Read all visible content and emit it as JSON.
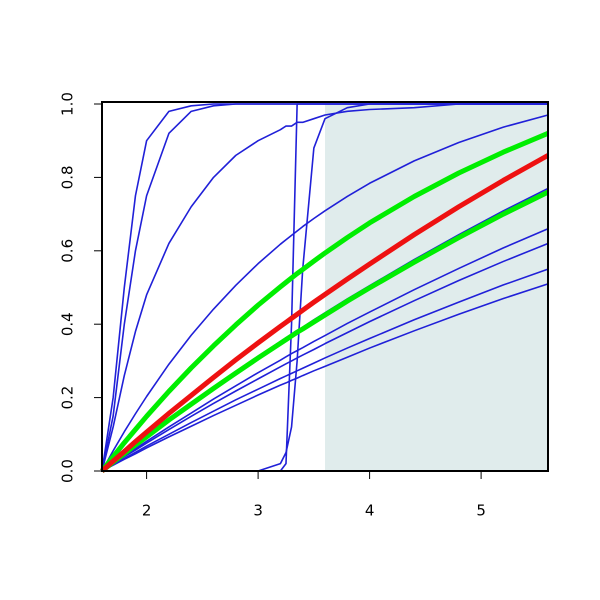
{
  "chart_data": {
    "type": "line",
    "x": [
      1.6,
      1.7,
      1.8,
      1.9,
      2.0,
      2.2,
      2.4,
      2.6,
      2.8,
      3.0,
      3.2,
      3.25,
      3.3,
      3.35,
      3.4,
      3.5,
      3.6,
      3.8,
      4.0,
      4.4,
      4.8,
      5.2,
      5.6
    ],
    "xlim": [
      1.6,
      5.6
    ],
    "xticks": [
      2,
      3,
      4,
      5
    ],
    "ylim": [
      0,
      1
    ],
    "yticks": [
      {
        "value": 0,
        "label": "0.0"
      },
      {
        "value": 0.2,
        "label": "0.2"
      },
      {
        "value": 0.4,
        "label": "0.4"
      },
      {
        "value": 0.6,
        "label": "0.6"
      },
      {
        "value": 0.8,
        "label": "0.8"
      },
      {
        "value": 1,
        "label": "1.0"
      }
    ],
    "shaded_region": {
      "xlim": [
        3.6,
        5.6
      ],
      "ylim": [
        0,
        1
      ],
      "color": "#e0ecec"
    },
    "series": [
      {
        "color": "#2020d8",
        "line_width": 1.6,
        "values": [
          0,
          0.2,
          0.5,
          0.75,
          0.9,
          0.98,
          0.995,
          1,
          1,
          1,
          1,
          1,
          1,
          1,
          1,
          1,
          1,
          1,
          1,
          1,
          1,
          1,
          1
        ]
      },
      {
        "color": "#2020d8",
        "line_width": 1.6,
        "values": [
          0,
          0.15,
          0.4,
          0.6,
          0.75,
          0.92,
          0.98,
          0.995,
          1,
          1,
          1,
          1,
          1,
          1,
          1,
          1,
          1,
          1,
          1,
          1,
          1,
          1,
          1
        ]
      },
      {
        "color": "#2020d8",
        "line_width": 1.6,
        "values": [
          0,
          0.12,
          0.26,
          0.38,
          0.48,
          0.62,
          0.72,
          0.8,
          0.86,
          0.9,
          0.93,
          0.94,
          0.94,
          0.95,
          0.95,
          0.96,
          0.97,
          0.98,
          0.985,
          0.99,
          1,
          1,
          1
        ]
      },
      {
        "color": "#2020d8",
        "line_width": 1.6,
        "values": [
          0,
          0,
          0,
          0,
          0,
          0,
          0,
          0,
          0,
          0,
          0,
          0.02,
          0.4,
          1,
          1,
          1,
          1,
          1,
          1,
          1,
          1,
          1,
          1
        ]
      },
      {
        "color": "#2020d8",
        "line_width": 1.6,
        "values": [
          0,
          0,
          0,
          0,
          0,
          0,
          0,
          0,
          0,
          0,
          0.02,
          0.05,
          0.12,
          0.3,
          0.55,
          0.88,
          0.96,
          0.99,
          1,
          1,
          1,
          1,
          1
        ]
      },
      {
        "color": "#2020d8",
        "line_width": 1.6,
        "values": [
          0,
          0.055,
          0.107,
          0.156,
          0.203,
          0.291,
          0.37,
          0.441,
          0.506,
          0.565,
          0.618,
          0.63,
          0.642,
          0.654,
          0.666,
          0.688,
          0.709,
          0.748,
          0.784,
          0.845,
          0.895,
          0.937,
          0.97
        ]
      },
      {
        "color": "#2020d8",
        "line_width": 1.6,
        "values": [
          0,
          0.024,
          0.048,
          0.071,
          0.095,
          0.14,
          0.185,
          0.228,
          0.271,
          0.312,
          0.353,
          0.363,
          0.373,
          0.383,
          0.392,
          0.412,
          0.431,
          0.469,
          0.505,
          0.576,
          0.644,
          0.709,
          0.77
        ]
      },
      {
        "color": "#2020d8",
        "line_width": 1.6,
        "values": [
          0,
          0.021,
          0.041,
          0.061,
          0.081,
          0.12,
          0.158,
          0.196,
          0.232,
          0.268,
          0.302,
          0.311,
          0.32,
          0.328,
          0.336,
          0.353,
          0.369,
          0.402,
          0.433,
          0.494,
          0.552,
          0.608,
          0.66
        ]
      },
      {
        "color": "#2020d8",
        "line_width": 1.6,
        "values": [
          0,
          0.019,
          0.039,
          0.057,
          0.076,
          0.113,
          0.149,
          0.184,
          0.218,
          0.251,
          0.284,
          0.292,
          0.3,
          0.308,
          0.316,
          0.331,
          0.347,
          0.377,
          0.407,
          0.464,
          0.519,
          0.571,
          0.62
        ]
      },
      {
        "color": "#2020d8",
        "line_width": 1.6,
        "values": [
          0,
          0.017,
          0.034,
          0.051,
          0.068,
          0.1,
          0.132,
          0.163,
          0.194,
          0.223,
          0.252,
          0.259,
          0.266,
          0.273,
          0.28,
          0.294,
          0.308,
          0.335,
          0.361,
          0.412,
          0.46,
          0.507,
          0.55
        ]
      },
      {
        "color": "#2020d8",
        "line_width": 1.6,
        "values": [
          0,
          0.016,
          0.032,
          0.047,
          0.063,
          0.093,
          0.122,
          0.151,
          0.179,
          0.207,
          0.234,
          0.24,
          0.247,
          0.253,
          0.26,
          0.273,
          0.285,
          0.31,
          0.335,
          0.382,
          0.427,
          0.47,
          0.51
        ]
      },
      {
        "color": "#00ee00",
        "line_width": 5,
        "values": [
          0,
          0.024,
          0.047,
          0.071,
          0.093,
          0.139,
          0.182,
          0.225,
          0.267,
          0.308,
          0.348,
          0.358,
          0.368,
          0.378,
          0.387,
          0.406,
          0.425,
          0.463,
          0.499,
          0.569,
          0.636,
          0.7,
          0.76
        ]
      },
      {
        "color": "#00ee00",
        "line_width": 5,
        "values": [
          0,
          0.039,
          0.077,
          0.113,
          0.149,
          0.217,
          0.281,
          0.341,
          0.398,
          0.452,
          0.502,
          0.514,
          0.526,
          0.538,
          0.549,
          0.572,
          0.594,
          0.636,
          0.676,
          0.748,
          0.812,
          0.869,
          0.92
        ]
      },
      {
        "color": "#ee1111",
        "line_width": 5,
        "values": [
          0,
          0.027,
          0.053,
          0.08,
          0.106,
          0.157,
          0.206,
          0.255,
          0.303,
          0.349,
          0.394,
          0.405,
          0.416,
          0.427,
          0.438,
          0.46,
          0.481,
          0.523,
          0.564,
          0.644,
          0.72,
          0.792,
          0.86
        ]
      }
    ]
  }
}
